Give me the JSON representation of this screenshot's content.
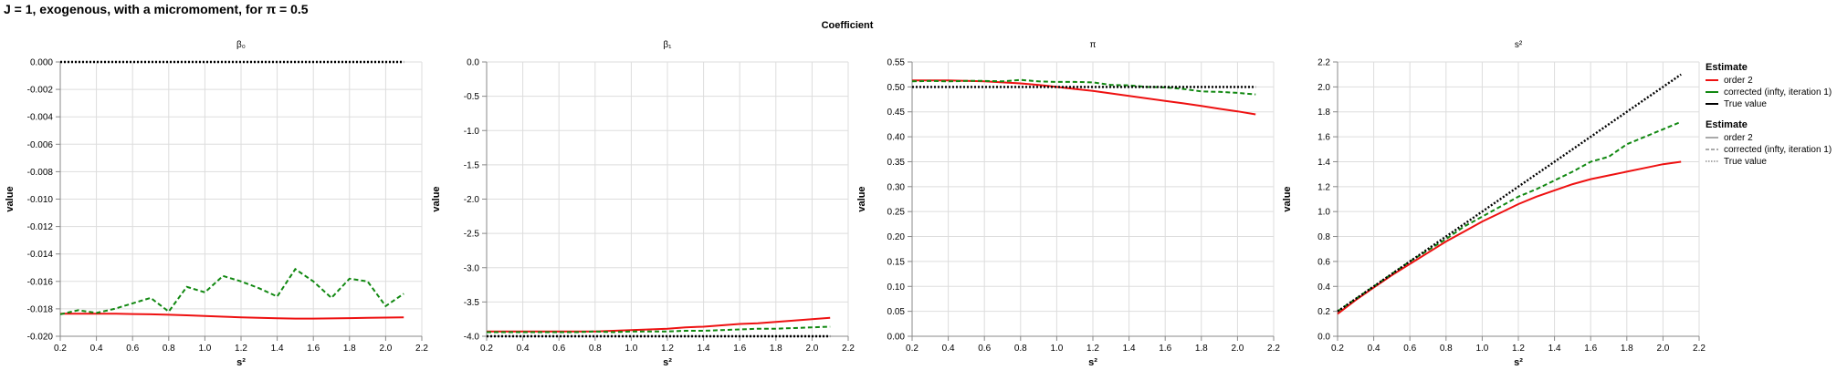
{
  "title": "J = 1, exogenous, with a micromoment,  for π = 0.5",
  "super_title": "Coefficient",
  "colors": {
    "order2": "#ee1111",
    "corrected": "#118811",
    "true": "#000000",
    "grid": "#dddddd"
  },
  "legend": {
    "color_title": "Estimate",
    "color_items": [
      "order 2",
      "corrected (infty, iteration 1)",
      "True value"
    ],
    "dash_title": "Estimate",
    "dash_items": [
      "order 2",
      "corrected (infty, iteration 1)",
      "True value"
    ]
  },
  "chart_data": [
    {
      "type": "line",
      "title": "β₀",
      "xlabel": "s²",
      "ylabel": "value",
      "xlim": [
        0.2,
        2.2
      ],
      "ylim": [
        -0.02,
        0.0
      ],
      "xticks": [
        "0.2",
        "0.4",
        "0.6",
        "0.8",
        "1.0",
        "1.2",
        "1.4",
        "1.6",
        "1.8",
        "2.0",
        "2.2"
      ],
      "yticks": [
        "-0.020",
        "-0.018",
        "-0.016",
        "-0.014",
        "-0.012",
        "-0.010",
        "-0.008",
        "-0.006",
        "-0.004",
        "-0.002",
        "0.000"
      ],
      "x": [
        0.2,
        0.3,
        0.4,
        0.5,
        0.6,
        0.7,
        0.8,
        0.9,
        1.0,
        1.1,
        1.2,
        1.3,
        1.4,
        1.5,
        1.6,
        1.7,
        1.8,
        1.9,
        2.0,
        2.1
      ],
      "series": [
        {
          "name": "order 2",
          "values": [
            -0.01835,
            -0.01835,
            -0.01835,
            -0.01835,
            -0.01838,
            -0.0184,
            -0.01843,
            -0.01847,
            -0.01852,
            -0.01857,
            -0.01862,
            -0.01866,
            -0.01869,
            -0.01871,
            -0.01871,
            -0.0187,
            -0.01868,
            -0.01866,
            -0.01864,
            -0.01862
          ]
        },
        {
          "name": "corrected (infty, iteration 1)",
          "values": [
            -0.0184,
            -0.0181,
            -0.0183,
            -0.018,
            -0.0176,
            -0.0172,
            -0.0182,
            -0.0164,
            -0.0168,
            -0.0156,
            -0.016,
            -0.0165,
            -0.0171,
            -0.0151,
            -0.016,
            -0.0172,
            -0.0158,
            -0.016,
            -0.0178,
            -0.0169
          ]
        },
        {
          "name": "True value",
          "values": [
            0,
            0,
            0,
            0,
            0,
            0,
            0,
            0,
            0,
            0,
            0,
            0,
            0,
            0,
            0,
            0,
            0,
            0,
            0,
            0
          ]
        }
      ]
    },
    {
      "type": "line",
      "title": "β₁",
      "xlabel": "s²",
      "ylabel": "value",
      "xlim": [
        0.2,
        2.2
      ],
      "ylim": [
        -4.0,
        0.0
      ],
      "xticks": [
        "0.2",
        "0.4",
        "0.6",
        "0.8",
        "1.0",
        "1.2",
        "1.4",
        "1.6",
        "1.8",
        "2.0",
        "2.2"
      ],
      "yticks": [
        "-4.0",
        "-3.5",
        "-3.0",
        "-2.5",
        "-2.0",
        "-1.5",
        "-1.0",
        "-0.5",
        "0.0"
      ],
      "x": [
        0.2,
        0.3,
        0.4,
        0.5,
        0.6,
        0.7,
        0.8,
        0.9,
        1.0,
        1.1,
        1.2,
        1.3,
        1.4,
        1.5,
        1.6,
        1.7,
        1.8,
        1.9,
        2.0,
        2.1
      ],
      "series": [
        {
          "name": "order 2",
          "values": [
            -3.93,
            -3.93,
            -3.93,
            -3.93,
            -3.93,
            -3.93,
            -3.93,
            -3.92,
            -3.91,
            -3.9,
            -3.89,
            -3.87,
            -3.86,
            -3.84,
            -3.82,
            -3.81,
            -3.79,
            -3.77,
            -3.75,
            -3.73
          ]
        },
        {
          "name": "corrected (infty, iteration 1)",
          "values": [
            -3.94,
            -3.94,
            -3.94,
            -3.94,
            -3.94,
            -3.94,
            -3.93,
            -3.94,
            -3.93,
            -3.93,
            -3.93,
            -3.92,
            -3.92,
            -3.91,
            -3.9,
            -3.89,
            -3.89,
            -3.88,
            -3.87,
            -3.86
          ]
        },
        {
          "name": "True value",
          "values": [
            -4,
            -4,
            -4,
            -4,
            -4,
            -4,
            -4,
            -4,
            -4,
            -4,
            -4,
            -4,
            -4,
            -4,
            -4,
            -4,
            -4,
            -4,
            -4,
            -4
          ]
        }
      ]
    },
    {
      "type": "line",
      "title": "π",
      "xlabel": "s²",
      "ylabel": "value",
      "xlim": [
        0.2,
        2.2
      ],
      "ylim": [
        0.0,
        0.55
      ],
      "xticks": [
        "0.2",
        "0.4",
        "0.6",
        "0.8",
        "1.0",
        "1.2",
        "1.4",
        "1.6",
        "1.8",
        "2.0",
        "2.2"
      ],
      "yticks": [
        "0.00",
        "0.05",
        "0.10",
        "0.15",
        "0.20",
        "0.25",
        "0.30",
        "0.35",
        "0.40",
        "0.45",
        "0.50",
        "0.55"
      ],
      "x": [
        0.2,
        0.3,
        0.4,
        0.5,
        0.6,
        0.7,
        0.8,
        0.9,
        1.0,
        1.1,
        1.2,
        1.3,
        1.4,
        1.5,
        1.6,
        1.7,
        1.8,
        1.9,
        2.0,
        2.1
      ],
      "series": [
        {
          "name": "order 2",
          "values": [
            0.513,
            0.513,
            0.513,
            0.512,
            0.511,
            0.509,
            0.507,
            0.504,
            0.5,
            0.496,
            0.492,
            0.487,
            0.482,
            0.477,
            0.472,
            0.467,
            0.462,
            0.456,
            0.451,
            0.445
          ]
        },
        {
          "name": "corrected (infty, iteration 1)",
          "values": [
            0.511,
            0.512,
            0.511,
            0.512,
            0.512,
            0.511,
            0.514,
            0.511,
            0.51,
            0.51,
            0.509,
            0.504,
            0.503,
            0.5,
            0.499,
            0.496,
            0.491,
            0.49,
            0.488,
            0.485
          ]
        },
        {
          "name": "True value",
          "values": [
            0.5,
            0.5,
            0.5,
            0.5,
            0.5,
            0.5,
            0.5,
            0.5,
            0.5,
            0.5,
            0.5,
            0.5,
            0.5,
            0.5,
            0.5,
            0.5,
            0.5,
            0.5,
            0.5,
            0.5
          ]
        }
      ]
    },
    {
      "type": "line",
      "title": "s²",
      "xlabel": "s²",
      "ylabel": "value",
      "xlim": [
        0.2,
        2.2
      ],
      "ylim": [
        0.0,
        2.2
      ],
      "xticks": [
        "0.2",
        "0.4",
        "0.6",
        "0.8",
        "1.0",
        "1.2",
        "1.4",
        "1.6",
        "1.8",
        "2.0",
        "2.2"
      ],
      "yticks": [
        "0.0",
        "0.2",
        "0.4",
        "0.6",
        "0.8",
        "1.0",
        "1.2",
        "1.4",
        "1.6",
        "1.8",
        "2.0",
        "2.2"
      ],
      "x": [
        0.2,
        0.3,
        0.4,
        0.5,
        0.6,
        0.7,
        0.8,
        0.9,
        1.0,
        1.1,
        1.2,
        1.3,
        1.4,
        1.5,
        1.6,
        1.7,
        1.8,
        1.9,
        2.0,
        2.1
      ],
      "series": [
        {
          "name": "order 2",
          "values": [
            0.18,
            0.29,
            0.39,
            0.49,
            0.58,
            0.67,
            0.76,
            0.84,
            0.92,
            0.99,
            1.06,
            1.12,
            1.17,
            1.22,
            1.26,
            1.29,
            1.32,
            1.35,
            1.38,
            1.4
          ]
        },
        {
          "name": "corrected (infty, iteration 1)",
          "values": [
            0.2,
            0.3,
            0.4,
            0.5,
            0.6,
            0.69,
            0.78,
            0.88,
            0.96,
            1.04,
            1.12,
            1.18,
            1.25,
            1.32,
            1.4,
            1.44,
            1.54,
            1.6,
            1.66,
            1.72
          ]
        },
        {
          "name": "True value",
          "values": [
            0.2,
            0.3,
            0.4,
            0.5,
            0.6,
            0.7,
            0.8,
            0.9,
            1.0,
            1.1,
            1.2,
            1.3,
            1.4,
            1.5,
            1.6,
            1.7,
            1.8,
            1.9,
            2.0,
            2.1
          ]
        }
      ]
    }
  ]
}
